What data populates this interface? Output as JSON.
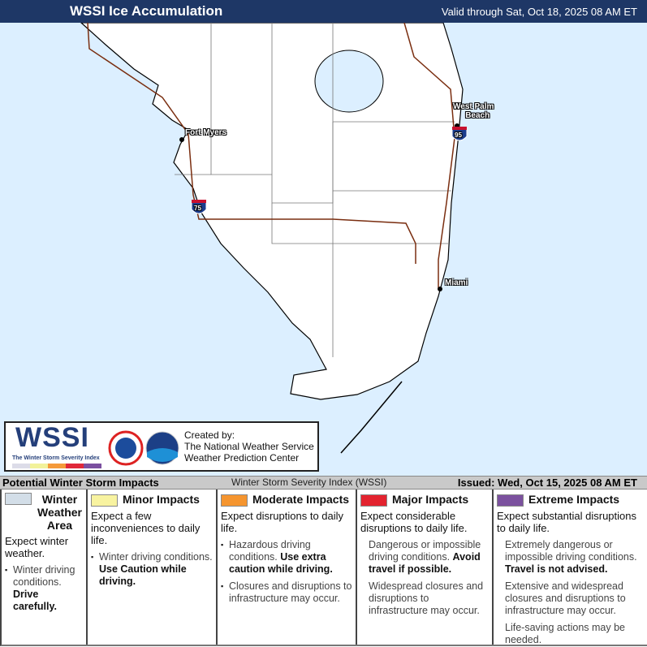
{
  "header": {
    "title": "WSSI Ice Accumulation",
    "valid": "Valid through Sat, Oct 18, 2025 08 AM ET"
  },
  "map": {
    "colors": {
      "water": "#dcefff",
      "land": "#ffffff",
      "roads": "#7a2e10"
    },
    "cities": [
      "Fort Myers",
      "West Palm Beach",
      "Miami"
    ],
    "west_palm": [
      "West Palm",
      "Beach"
    ],
    "shields": [
      "75",
      "95"
    ]
  },
  "logo": {
    "wssi": "WSSI",
    "subtitle": "The Winter Storm Severity Index",
    "created": [
      "Created by:",
      "The National Weather Service",
      "Weather Prediction Center"
    ],
    "scale_colors": [
      "#dcdce8",
      "#f2f29a",
      "#f59a3a",
      "#e0283a",
      "#7b4fa0"
    ]
  },
  "bar": {
    "title": "Potential Winter Storm Impacts",
    "index": "Winter Storm Severity Index (WSSI)",
    "issued": "Issued: Wed, Oct 15, 2025 08 AM ET"
  },
  "legend": [
    {
      "label": "Winter Weather Area",
      "color": "#d3dee8",
      "expect": "Expect winter weather.",
      "items": [
        {
          "text": "Winter driving conditions.",
          "bold": "Drive carefully."
        }
      ]
    },
    {
      "label": "Minor Impacts",
      "color": "#f8f3a0",
      "expect": "Expect a few inconveniences to daily life.",
      "items": [
        {
          "text": "Winter driving conditions.",
          "bold": "Use Caution while driving."
        }
      ]
    },
    {
      "label": "Moderate Impacts",
      "color": "#f5952f",
      "expect": "Expect disruptions to daily life.",
      "items": [
        {
          "text": "Hazardous driving conditions.",
          "bold": "Use extra caution while driving."
        },
        {
          "text": "Closures and disruptions to infrastructure may occur.",
          "bold": ""
        }
      ]
    },
    {
      "label": "Major Impacts",
      "color": "#e3232f",
      "expect": "Expect considerable disruptions to daily life.",
      "items": [
        {
          "text": "Dangerous or impossible driving conditions.",
          "bold": "Avoid travel if possible."
        },
        {
          "text": "Widespread closures and disruptions to infrastructure may occur.",
          "bold": ""
        }
      ]
    },
    {
      "label": "Extreme Impacts",
      "color": "#7b519e",
      "expect": "Expect substantial disruptions to daily life.",
      "items": [
        {
          "text": "Extremely dangerous or impossible driving conditions.",
          "bold": "Travel is not advised."
        },
        {
          "text": "Extensive and widespread closures and disruptions to infrastructure may occur.",
          "bold": ""
        },
        {
          "text": "Life-saving actions may be needed.",
          "bold": ""
        }
      ]
    }
  ]
}
